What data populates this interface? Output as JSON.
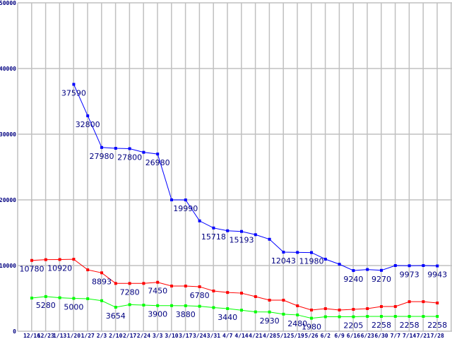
{
  "chart_data": {
    "type": "line",
    "title": "",
    "xlabel": "",
    "ylabel": "",
    "ylim": [
      0,
      50000
    ],
    "yticks": [
      "0",
      "10000",
      "20000",
      "30000",
      "40000",
      "50000"
    ],
    "grid": true,
    "categories": [
      "12/16",
      "12/23",
      "1/13",
      "1/20",
      "1/27",
      "2/3",
      "2/10",
      "2/17",
      "2/24",
      "3/3",
      "3/10",
      "3/17",
      "3/24",
      "3/31",
      "4/7",
      "4/14",
      "4/21",
      "4/28",
      "5/12",
      "5/19",
      "5/26",
      "6/2",
      "6/9",
      "6/16",
      "6/23",
      "6/30",
      "7/7",
      "7/14",
      "7/21",
      "7/28"
    ],
    "series": [
      {
        "name": "blue",
        "color": "#0000ff",
        "values": [
          null,
          null,
          null,
          37590,
          32800,
          27980,
          27850,
          27800,
          27240,
          26980,
          20000,
          19990,
          16800,
          15718,
          15300,
          15193,
          14700,
          14000,
          12043,
          12000,
          11980,
          10970,
          10200,
          9240,
          9400,
          9270,
          10000,
          9973,
          10000,
          9943
        ],
        "labels": {
          "3": "37590",
          "4": "32800",
          "5": "27980",
          "7": "27800",
          "9": "26980",
          "11": "19990",
          "13": "15718",
          "15": "15193",
          "18": "12043",
          "20": "11980",
          "23": "9240",
          "25": "9270",
          "27": "9973",
          "29": "9943"
        }
      },
      {
        "name": "red",
        "color": "#ff0000",
        "values": [
          10780,
          10900,
          10920,
          10960,
          9350,
          8893,
          7280,
          7280,
          7280,
          7450,
          6880,
          6880,
          6780,
          6130,
          5900,
          5800,
          5270,
          4730,
          4730,
          3870,
          3230,
          3440,
          3230,
          3330,
          3440,
          3760,
          3760,
          4500,
          4500,
          4300
        ],
        "labels": {
          "0": "10780",
          "2": "10920",
          "5": "8893",
          "7": "7280",
          "9": "7450",
          "12": "6780"
        }
      },
      {
        "name": "green",
        "color": "#00ff00",
        "values": [
          5050,
          5280,
          5100,
          5000,
          4950,
          4650,
          3654,
          4050,
          3980,
          3900,
          3900,
          3880,
          3800,
          3600,
          3440,
          3200,
          2950,
          2930,
          2600,
          2480,
          1980,
          2205,
          2205,
          2205,
          2258,
          2258,
          2258,
          2258,
          2258,
          2258
        ],
        "labels": {
          "1": "5280",
          "3": "5000",
          "6": "3654",
          "9": "3900",
          "11": "3880",
          "14": "3440",
          "17": "2930",
          "19": "2480",
          "20": "1980",
          "23": "2205",
          "25": "2258",
          "27": "2258",
          "29": "2258"
        }
      }
    ]
  }
}
